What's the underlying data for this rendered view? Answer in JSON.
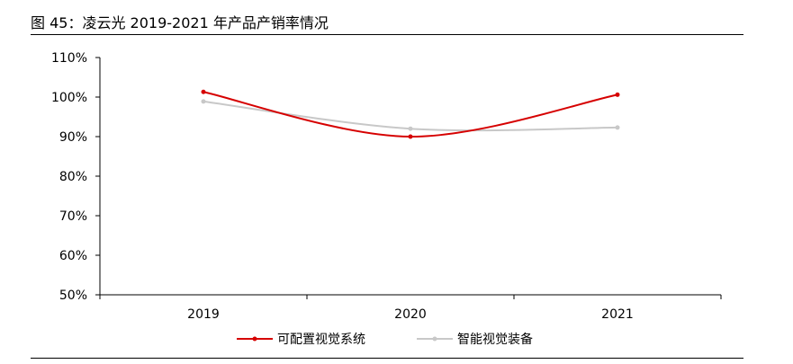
{
  "figure": {
    "title": "图 45：凌云光 2019-2021 年产品产销率情况"
  },
  "chart_data": {
    "type": "line",
    "title": "",
    "xlabel": "",
    "ylabel": "",
    "categories": [
      "2019",
      "2020",
      "2021"
    ],
    "ylim": [
      50,
      110
    ],
    "yticks": [
      "50%",
      "60%",
      "70%",
      "80%",
      "90%",
      "100%",
      "110%"
    ],
    "grid": false,
    "legend": "bottom",
    "series": [
      {
        "name": "可配置视觉系统",
        "values": [
          101.3,
          90.0,
          100.6
        ],
        "color": "#d60000"
      },
      {
        "name": "智能视觉装备",
        "values": [
          98.9,
          92.0,
          92.3
        ],
        "color": "#c8c8c8"
      }
    ]
  }
}
